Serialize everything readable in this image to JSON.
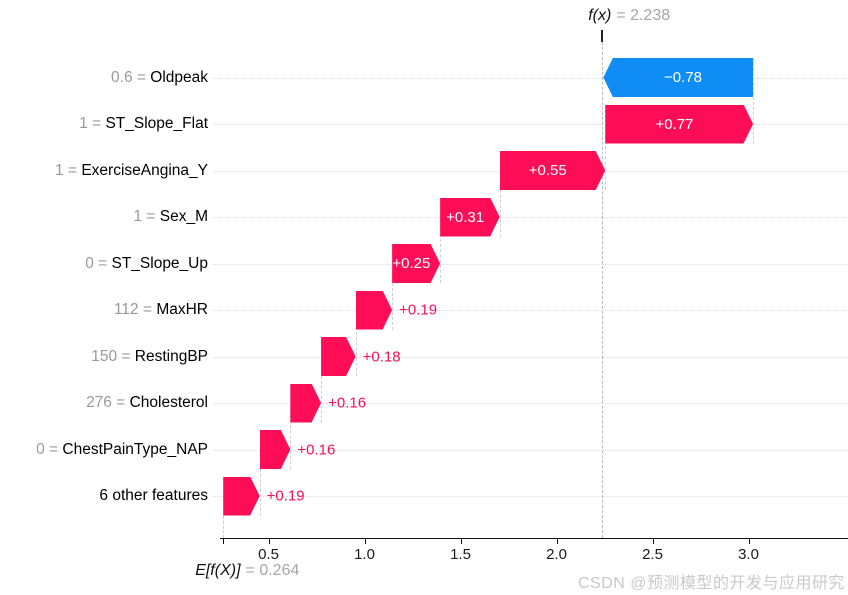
{
  "watermark": {
    "text": "CSDN @预测模型的开发与应用研究"
  },
  "chart_data": {
    "type": "waterfall",
    "title": "f(x) = 2.238",
    "fx_label": "f(x)",
    "fx_text": "= 2.238",
    "fx_value": 2.238,
    "base_label": "E[f(X)]",
    "base_text": "= 0.264",
    "base_value": 0.264,
    "xlabel": "",
    "ylabel": "",
    "xlim": [
      0.246,
      3.52
    ],
    "grid": "dotted horizontal per row",
    "x_ticks": [
      0.5,
      1.0,
      1.5,
      2.0,
      2.5,
      3.0
    ],
    "x_tick_labels": [
      "0.5",
      "1.0",
      "1.5",
      "2.0",
      "2.5",
      "3.0"
    ],
    "colors": {
      "positive": "#ff0d57",
      "negative": "#0f8df5",
      "feature_value_gray": "#999999",
      "eq_gray": "#a6a6a6",
      "grid": "#dcdcdc",
      "connector": "#cfcfcf",
      "fx_line": "#b8b8b8",
      "watermark": "#c9c9c9",
      "axis": "#111111"
    },
    "rows": [
      {
        "value_label": "0.6",
        "name": "Oldpeak",
        "shap": -0.78,
        "bar_label": "−0.78"
      },
      {
        "value_label": "1",
        "name": "ST_Slope_Flat",
        "shap": 0.77,
        "bar_label": "+0.77"
      },
      {
        "value_label": "1",
        "name": "ExerciseAngina_Y",
        "shap": 0.55,
        "bar_label": "+0.55"
      },
      {
        "value_label": "1",
        "name": "Sex_M",
        "shap": 0.31,
        "bar_label": "+0.31"
      },
      {
        "value_label": "0",
        "name": "ST_Slope_Up",
        "shap": 0.25,
        "bar_label": "+0.25"
      },
      {
        "value_label": "112",
        "name": "MaxHR",
        "shap": 0.19,
        "bar_label": "+0.19"
      },
      {
        "value_label": "150",
        "name": "RestingBP",
        "shap": 0.18,
        "bar_label": "+0.18"
      },
      {
        "value_label": "276",
        "name": "Cholesterol",
        "shap": 0.16,
        "bar_label": "+0.16"
      },
      {
        "value_label": "0",
        "name": "ChestPainType_NAP",
        "shap": 0.16,
        "bar_label": "+0.16"
      },
      {
        "value_label": "",
        "name": "6 other features",
        "shap": 0.19,
        "bar_label": "+0.19"
      }
    ]
  }
}
